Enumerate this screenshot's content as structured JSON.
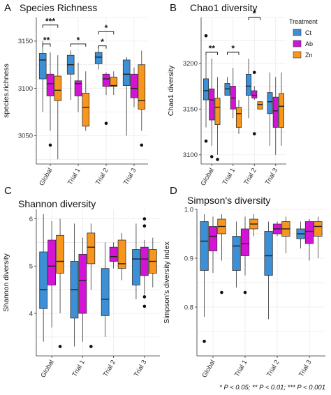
{
  "colors": {
    "Ct": "#3d8fd6",
    "Ab": "#d313d6",
    "Zn": "#f7951d"
  },
  "legend": {
    "title": "Treatment",
    "items": [
      "Ct",
      "Ab",
      "Zn"
    ]
  },
  "footnote": "* P < 0.05; ** P < 0.01; *** P < 0.001",
  "chart_data": [
    {
      "letter": "A",
      "type": "boxplot",
      "title": "Species Richness",
      "ylabel": "species.richness",
      "categories": [
        "Global",
        "Trial 1",
        "Trial 2",
        "Trial 3"
      ],
      "ylim": [
        3020,
        3175
      ],
      "yticks": [
        3050,
        3100,
        3150
      ],
      "grid": true,
      "series": [
        {
          "name": "Ct",
          "boxes": [
            {
              "min": 3075,
              "q1": 3110,
              "median": 3130,
              "q3": 3137,
              "max": 3150,
              "outliers": []
            },
            {
              "min": 3088,
              "q1": 3115,
              "median": 3125,
              "q3": 3135,
              "max": 3140,
              "outliers": []
            },
            {
              "min": 3120,
              "q1": 3126,
              "median": 3133,
              "q3": 3138,
              "max": 3145,
              "outliers": []
            },
            {
              "min": 3050,
              "q1": 3103,
              "median": 3115,
              "q3": 3130,
              "max": 3133,
              "outliers": []
            }
          ]
        },
        {
          "name": "Ab",
          "boxes": [
            {
              "min": 3055,
              "q1": 3092,
              "median": 3105,
              "q3": 3115,
              "max": 3138,
              "outliers": [
                3040
              ]
            },
            {
              "min": 3075,
              "q1": 3092,
              "median": 3105,
              "q3": 3108,
              "max": 3127,
              "outliers": []
            },
            {
              "min": 3093,
              "q1": 3102,
              "median": 3110,
              "q3": 3115,
              "max": 3117,
              "outliers": [
                3063
              ]
            },
            {
              "min": 3080,
              "q1": 3090,
              "median": 3100,
              "q3": 3115,
              "max": 3122,
              "outliers": []
            }
          ]
        },
        {
          "name": "Zn",
          "boxes": [
            {
              "min": 3025,
              "q1": 3087,
              "median": 3098,
              "q3": 3113,
              "max": 3135,
              "outliers": []
            },
            {
              "min": 3055,
              "q1": 3060,
              "median": 3080,
              "q3": 3095,
              "max": 3118,
              "outliers": []
            },
            {
              "min": 3093,
              "q1": 3102,
              "median": 3103,
              "q3": 3112,
              "max": 3118,
              "outliers": []
            },
            {
              "min": 3055,
              "q1": 3078,
              "median": 3087,
              "q3": 3125,
              "max": 3140,
              "outliers": [
                3040
              ]
            }
          ]
        }
      ],
      "annotations": [
        {
          "category": 0,
          "from": "Ct",
          "to": "Zn",
          "label": "***",
          "y": 3167
        },
        {
          "category": 0,
          "from": "Ct",
          "to": "Ab",
          "label": "**",
          "y": 3147
        },
        {
          "category": 1,
          "from": "Ct",
          "to": "Zn",
          "label": "*",
          "y": 3147
        },
        {
          "category": 2,
          "from": "Ct",
          "to": "Zn",
          "label": "*",
          "y": 3160
        },
        {
          "category": 2,
          "from": "Ct",
          "to": "Ab",
          "label": "*",
          "y": 3145
        }
      ]
    },
    {
      "letter": "B",
      "type": "boxplot",
      "title": "Chao1 diversity",
      "ylabel": "Chao1 diversity",
      "categories": [
        "Global",
        "Trial 1",
        "Trial 2",
        "Trial 3"
      ],
      "ylim": [
        3090,
        3250
      ],
      "yticks": [
        3100,
        3150,
        3200
      ],
      "grid": true,
      "series": [
        {
          "name": "Ct",
          "boxes": [
            {
              "min": 3130,
              "q1": 3160,
              "median": 3170,
              "q3": 3183,
              "max": 3210,
              "outliers": [
                3230,
                3115
              ]
            },
            {
              "min": 3165,
              "q1": 3165,
              "median": 3172,
              "q3": 3178,
              "max": 3185,
              "outliers": []
            },
            {
              "min": 3140,
              "q1": 3165,
              "median": 3175,
              "q3": 3188,
              "max": 3205,
              "outliers": []
            },
            {
              "min": 3110,
              "q1": 3145,
              "median": 3158,
              "q3": 3168,
              "max": 3190,
              "outliers": []
            }
          ]
        },
        {
          "name": "Ab",
          "boxes": [
            {
              "min": 3110,
              "q1": 3138,
              "median": 3160,
              "q3": 3172,
              "max": 3205,
              "outliers": [
                3098
              ]
            },
            {
              "min": 3140,
              "q1": 3150,
              "median": 3162,
              "q3": 3175,
              "max": 3195,
              "outliers": []
            },
            {
              "min": 3160,
              "q1": 3162,
              "median": 3165,
              "q3": 3170,
              "max": 3175,
              "outliers": [
                3190,
                3123
              ]
            },
            {
              "min": 3100,
              "q1": 3130,
              "median": 3148,
              "q3": 3163,
              "max": 3185,
              "outliers": []
            }
          ]
        },
        {
          "name": "Zn",
          "boxes": [
            {
              "min": 3100,
              "q1": 3133,
              "median": 3152,
              "q3": 3162,
              "max": 3185,
              "outliers": [
                3095
              ]
            },
            {
              "min": 3123,
              "q1": 3130,
              "median": 3145,
              "q3": 3152,
              "max": 3160,
              "outliers": []
            },
            {
              "min": 3150,
              "q1": 3150,
              "median": 3155,
              "q3": 3158,
              "max": 3158,
              "outliers": []
            },
            {
              "min": 3110,
              "q1": 3130,
              "median": 3153,
              "q3": 3167,
              "max": 3190,
              "outliers": []
            }
          ]
        }
      ],
      "annotations": [
        {
          "category": 0,
          "from": "Ct",
          "to": "Zn",
          "label": "**",
          "y": 3212
        },
        {
          "category": 1,
          "from": "Ct",
          "to": "Zn",
          "label": "*",
          "y": 3212
        },
        {
          "category": 2,
          "from": "Ct",
          "to": "Zn",
          "label": "*",
          "y": 3250
        }
      ]
    },
    {
      "letter": "C",
      "type": "boxplot",
      "title": "Shannon diversity",
      "ylabel": "Shannon diversity",
      "categories": [
        "Global",
        "Trial 1",
        "Trial 2",
        "Trial 3"
      ],
      "ylim": [
        3.1,
        6.2
      ],
      "yticks": [
        4,
        5,
        6
      ],
      "grid": true,
      "series": [
        {
          "name": "Ct",
          "boxes": [
            {
              "min": 3.4,
              "q1": 4.1,
              "median": 4.5,
              "q3": 5.3,
              "max": 6.1,
              "outliers": []
            },
            {
              "min": 3.3,
              "q1": 3.9,
              "median": 4.5,
              "q3": 5.1,
              "max": 5.9,
              "outliers": []
            },
            {
              "min": 3.5,
              "q1": 3.95,
              "median": 4.3,
              "q3": 4.95,
              "max": 5.5,
              "outliers": []
            },
            {
              "min": 4.3,
              "q1": 4.6,
              "median": 5.15,
              "q3": 5.35,
              "max": 5.9,
              "outliers": []
            }
          ]
        },
        {
          "name": "Ab",
          "boxes": [
            {
              "min": 3.7,
              "q1": 4.6,
              "median": 5.0,
              "q3": 5.55,
              "max": 5.95,
              "outliers": []
            },
            {
              "min": 3.4,
              "q1": 4.0,
              "median": 4.7,
              "q3": 5.25,
              "max": 5.6,
              "outliers": []
            },
            {
              "min": 4.95,
              "q1": 5.1,
              "median": 5.2,
              "q3": 5.4,
              "max": 5.5,
              "outliers": []
            },
            {
              "min": 4.4,
              "q1": 4.8,
              "median": 5.15,
              "q3": 5.4,
              "max": 5.55,
              "outliers": [
                6.0,
                5.85,
                4.35,
                4.15
              ]
            }
          ]
        },
        {
          "name": "Zn",
          "boxes": [
            {
              "min": 4.0,
              "q1": 4.85,
              "median": 5.1,
              "q3": 5.65,
              "max": 6.0,
              "outliers": [
                3.3
              ]
            },
            {
              "min": 4.5,
              "q1": 5.05,
              "median": 5.4,
              "q3": 5.7,
              "max": 5.9,
              "outliers": [
                3.3
              ]
            },
            {
              "min": 4.7,
              "q1": 4.95,
              "median": 5.05,
              "q3": 5.55,
              "max": 5.7,
              "outliers": []
            },
            {
              "min": 4.55,
              "q1": 4.85,
              "median": 5.1,
              "q3": 5.35,
              "max": 5.6,
              "outliers": []
            }
          ]
        }
      ],
      "annotations": []
    },
    {
      "letter": "D",
      "type": "boxplot",
      "title": "Simpson's diversity",
      "ylabel": "Simpson's diversity index",
      "categories": [
        "Global",
        "Trial 1",
        "Trial 2",
        "Trial 3"
      ],
      "ylim": [
        0.7,
        1.0
      ],
      "yticks": [
        0.8,
        0.9,
        1.0
      ],
      "yticklabels": [
        "0.8",
        "0.9",
        "1.0"
      ],
      "grid": true,
      "series": [
        {
          "name": "Ct",
          "boxes": [
            {
              "min": 0.78,
              "q1": 0.875,
              "median": 0.935,
              "q3": 0.975,
              "max": 0.99,
              "outliers": [
                0.73
              ]
            },
            {
              "min": 0.84,
              "q1": 0.875,
              "median": 0.925,
              "q3": 0.945,
              "max": 0.975,
              "outliers": []
            },
            {
              "min": 0.775,
              "q1": 0.865,
              "median": 0.905,
              "q3": 0.955,
              "max": 0.975,
              "outliers": []
            },
            {
              "min": 0.92,
              "q1": 0.94,
              "median": 0.95,
              "q3": 0.96,
              "max": 0.975,
              "outliers": []
            }
          ]
        },
        {
          "name": "Ab",
          "boxes": [
            {
              "min": 0.87,
              "q1": 0.915,
              "median": 0.945,
              "q3": 0.965,
              "max": 0.985,
              "outliers": []
            },
            {
              "min": 0.865,
              "q1": 0.905,
              "median": 0.93,
              "q3": 0.96,
              "max": 0.985,
              "outliers": [
                0.83
              ]
            },
            {
              "min": 0.945,
              "q1": 0.95,
              "median": 0.96,
              "q3": 0.97,
              "max": 0.975,
              "outliers": []
            },
            {
              "min": 0.895,
              "q1": 0.93,
              "median": 0.955,
              "q3": 0.975,
              "max": 0.98,
              "outliers": []
            }
          ]
        },
        {
          "name": "Zn",
          "boxes": [
            {
              "min": 0.895,
              "q1": 0.95,
              "median": 0.965,
              "q3": 0.98,
              "max": 0.99,
              "outliers": [
                0.83
              ]
            },
            {
              "min": 0.945,
              "q1": 0.96,
              "median": 0.97,
              "q3": 0.98,
              "max": 0.99,
              "outliers": []
            },
            {
              "min": 0.91,
              "q1": 0.945,
              "median": 0.96,
              "q3": 0.975,
              "max": 0.985,
              "outliers": []
            },
            {
              "min": 0.9,
              "q1": 0.945,
              "median": 0.965,
              "q3": 0.975,
              "max": 0.985,
              "outliers": []
            }
          ]
        }
      ],
      "annotations": []
    }
  ]
}
